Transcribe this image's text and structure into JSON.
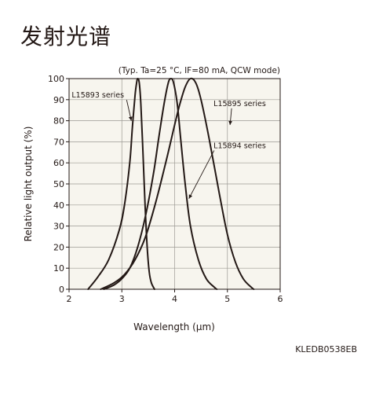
{
  "page": {
    "title": "发射光谱",
    "figure_code": "KLEDB0538EB"
  },
  "chart_data": {
    "type": "line",
    "conditions": "(Typ. Ta=25 °C, IF=80 mA, QCW mode)",
    "xlabel": "Wavelength (µm)",
    "ylabel": "Relative light output (%)",
    "xlim": [
      2,
      6
    ],
    "ylim": [
      0,
      100
    ],
    "xticks": [
      "2",
      "3",
      "4",
      "5",
      "6"
    ],
    "yticks": [
      "0",
      "10",
      "20",
      "30",
      "40",
      "50",
      "60",
      "70",
      "80",
      "90",
      "100"
    ],
    "grid": true,
    "plot_bg": "#f7f5ee",
    "line_color": "#231815",
    "series": [
      {
        "name": "L15893 series",
        "x": [
          2.36,
          2.55,
          2.75,
          2.95,
          3.05,
          3.15,
          3.2,
          3.25,
          3.28,
          3.3,
          3.33,
          3.36,
          3.4,
          3.44,
          3.48,
          3.52,
          3.56,
          3.62
        ],
        "y": [
          0,
          6,
          14,
          28,
          40,
          60,
          77,
          92,
          98,
          100,
          98,
          88,
          65,
          40,
          20,
          8,
          3,
          0
        ]
      },
      {
        "name": "L15894 series",
        "x": [
          2.66,
          2.85,
          3.0,
          3.15,
          3.3,
          3.45,
          3.6,
          3.7,
          3.8,
          3.88,
          3.93,
          3.98,
          4.05,
          4.12,
          4.2,
          4.3,
          4.45,
          4.6,
          4.75,
          4.8
        ],
        "y": [
          0,
          2,
          5,
          10,
          20,
          35,
          55,
          72,
          88,
          98,
          100,
          98,
          88,
          70,
          50,
          30,
          14,
          5,
          1,
          0
        ]
      },
      {
        "name": "L15895 series",
        "x": [
          2.6,
          2.85,
          3.05,
          3.25,
          3.45,
          3.65,
          3.85,
          4.0,
          4.1,
          4.2,
          4.3,
          4.4,
          4.5,
          4.65,
          4.85,
          5.0,
          5.15,
          5.3,
          5.45,
          5.5
        ],
        "y": [
          0,
          3,
          7,
          14,
          25,
          42,
          62,
          78,
          88,
          96,
          100,
          98,
          90,
          72,
          45,
          26,
          13,
          5,
          1,
          0
        ]
      }
    ],
    "annotations": [
      {
        "text": "L15893 series",
        "label_at": [
          2.05,
          91
        ],
        "arrow_to": [
          3.18,
          80
        ]
      },
      {
        "text": "L15895 series",
        "label_at": [
          5.73,
          87
        ],
        "arrow_to": [
          5.05,
          78
        ]
      },
      {
        "text": "L15894 series",
        "label_at": [
          5.73,
          67
        ],
        "arrow_to": [
          4.27,
          43
        ]
      }
    ]
  }
}
